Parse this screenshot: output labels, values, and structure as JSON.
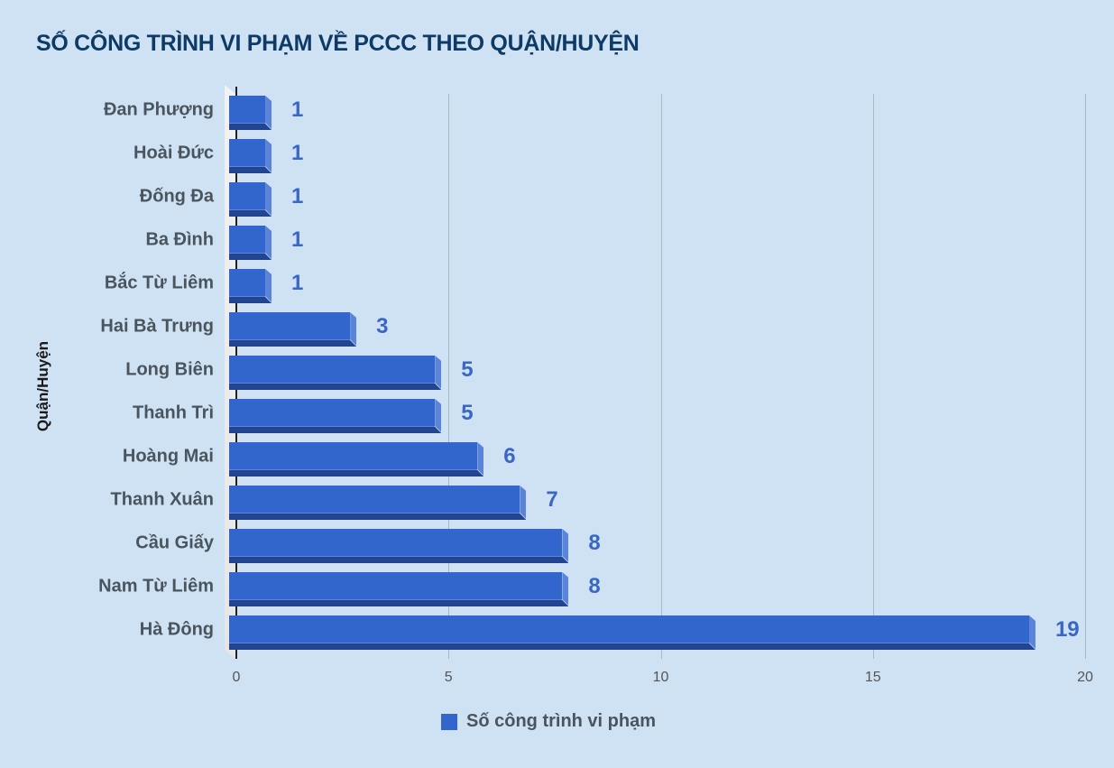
{
  "chart_data": {
    "type": "bar",
    "orientation": "horizontal",
    "title": "SỐ CÔNG TRÌNH VI PHẠM VỀ PCCC THEO QUẬN/HUYỆN",
    "xlabel": "",
    "ylabel": "Quận/Huyện",
    "categories": [
      "Đan Phượng",
      "Hoài Đức",
      "Đống Đa",
      "Ba Đình",
      "Bắc Từ Liêm",
      "Hai Bà Trưng",
      "Long Biên",
      "Thanh Trì",
      "Hoàng Mai",
      "Thanh Xuân",
      "Cầu Giấy",
      "Nam Từ Liêm",
      "Hà Đông"
    ],
    "series": [
      {
        "name": "Số công trình vi phạm",
        "values": [
          1,
          1,
          1,
          1,
          1,
          3,
          5,
          5,
          6,
          7,
          8,
          8,
          19
        ],
        "color": "#3366cc"
      }
    ],
    "xlim": [
      0,
      20
    ],
    "xticks": [
      "0",
      "5",
      "10",
      "15",
      "20"
    ],
    "grid": true,
    "legend_position": "bottom",
    "data_labels": true
  },
  "colors": {
    "background": "#cfe2f3",
    "bar": "#3366cc",
    "title": "#0d3a66",
    "label": "#3a66c4"
  }
}
